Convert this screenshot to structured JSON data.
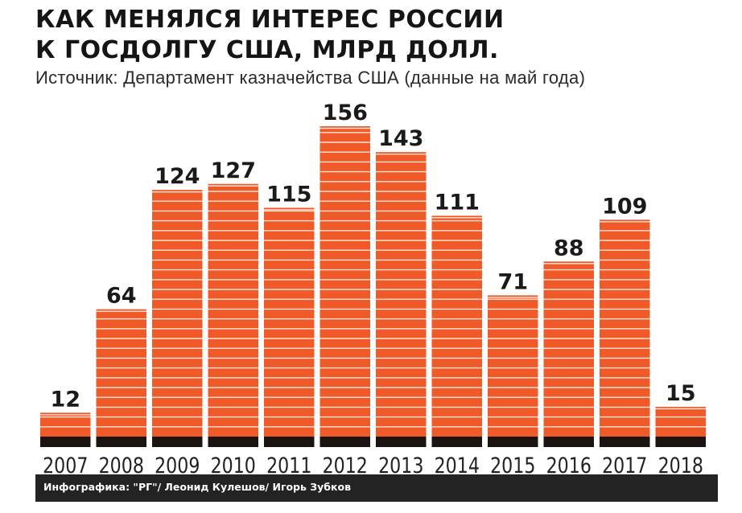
{
  "chart_data": {
    "type": "bar",
    "title_lines": [
      "КАК МЕНЯЛСЯ ИНТЕРЕС РОССИИ",
      "К ГОСДОЛГУ США, МЛРД ДОЛЛ."
    ],
    "subtitle": "Источник: Департамент казначейства США (данные на май года)",
    "categories": [
      "2007",
      "2008",
      "2009",
      "2010",
      "2011",
      "2012",
      "2013",
      "2014",
      "2015",
      "2016",
      "2017",
      "2018"
    ],
    "values": [
      12,
      64,
      124,
      127,
      115,
      156,
      143,
      111,
      71,
      88,
      109,
      15
    ],
    "value_labels": [
      "12",
      "64",
      "124",
      "127",
      "115",
      "156",
      "143",
      "111",
      "71",
      "88",
      "109",
      "15"
    ],
    "xlabel": "",
    "ylabel": "",
    "ylim": [
      0,
      156
    ],
    "grid": false,
    "legend": "none",
    "colors": {
      "bar": "#f05a28",
      "stripe": "#fbe3d9",
      "base": "#1c1410",
      "text": "#1a1a1a"
    }
  },
  "footer": {
    "credit": "Инфографика: \"РГ\"/ Леонид Кулешов/ Игорь Зубков"
  }
}
